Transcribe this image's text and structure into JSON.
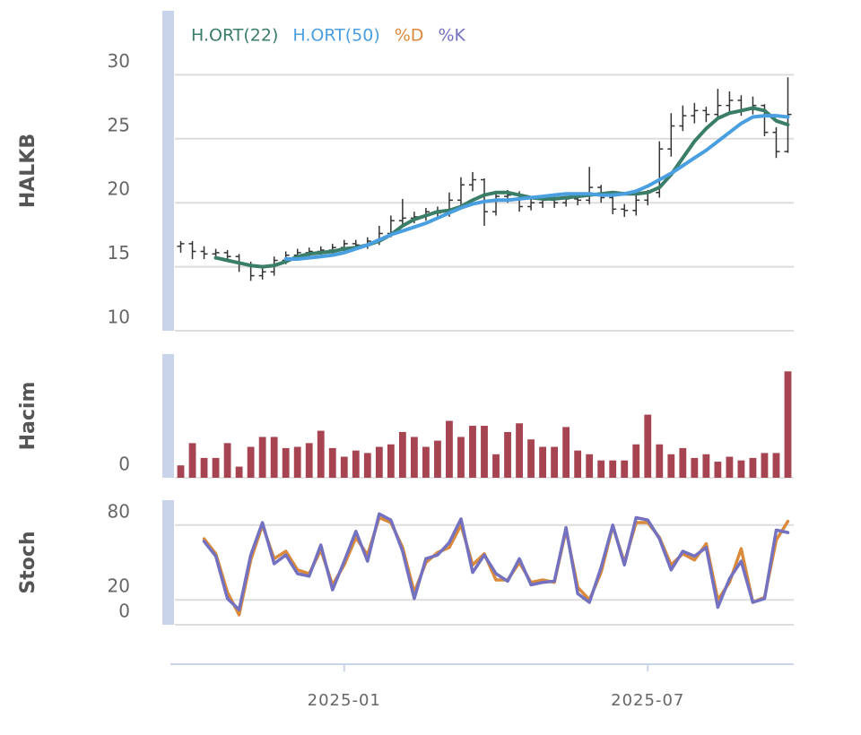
{
  "chart_data": [
    {
      "type": "ohlc",
      "axis_label": "HALKB",
      "ylim": [
        10,
        35
      ],
      "yticks": [
        10,
        15,
        20,
        25,
        30
      ],
      "grid": true,
      "color": "#333333",
      "open": [
        16.6,
        16.8,
        16.2,
        16.0,
        16.1,
        15.8,
        15.2,
        14.3,
        14.6,
        15.5,
        15.9,
        16.1,
        16.2,
        16.3,
        16.5,
        16.8,
        16.7,
        17.0,
        17.6,
        18.6,
        18.8,
        18.9,
        19.3,
        19.2,
        20.2,
        21.4,
        21.8,
        19.3,
        20.5,
        20.6,
        19.7,
        20.0,
        20.2,
        20.0,
        20.3,
        20.2,
        21.2,
        20.4,
        19.5,
        19.4,
        20.2,
        20.8,
        24.2,
        26.0,
        26.8,
        27.2,
        26.9,
        27.6,
        28.0,
        27.3,
        27.6,
        25.5,
        24.0
      ],
      "high": [
        17.0,
        17.0,
        16.6,
        16.4,
        16.3,
        16.0,
        15.4,
        15.0,
        15.8,
        16.2,
        16.4,
        16.5,
        16.6,
        16.8,
        17.1,
        17.1,
        17.3,
        18.2,
        19.0,
        20.3,
        19.3,
        19.6,
        19.7,
        20.8,
        22.0,
        22.4,
        21.9,
        20.9,
        21.0,
        20.9,
        20.3,
        20.5,
        20.5,
        20.5,
        20.6,
        22.8,
        21.4,
        20.6,
        19.9,
        20.6,
        21.0,
        24.8,
        27.0,
        27.6,
        27.8,
        27.5,
        28.9,
        28.7,
        28.4,
        28.3,
        27.7,
        25.9,
        29.8
      ],
      "low": [
        16.1,
        15.6,
        15.6,
        15.6,
        15.4,
        14.6,
        13.9,
        14.0,
        14.3,
        15.2,
        15.6,
        15.8,
        15.9,
        16.0,
        16.2,
        16.3,
        16.4,
        16.7,
        17.3,
        18.3,
        18.4,
        18.6,
        18.8,
        18.9,
        19.8,
        20.9,
        18.2,
        19.0,
        20.0,
        19.3,
        19.4,
        19.6,
        19.6,
        19.7,
        19.8,
        19.9,
        20.0,
        19.1,
        18.9,
        19.0,
        19.8,
        20.4,
        23.6,
        25.6,
        26.2,
        26.3,
        26.5,
        27.0,
        26.8,
        26.9,
        25.2,
        23.5,
        23.9
      ],
      "close": [
        16.8,
        16.2,
        16.0,
        16.1,
        15.8,
        15.2,
        14.3,
        14.6,
        15.5,
        15.9,
        16.1,
        16.2,
        16.3,
        16.5,
        16.8,
        16.7,
        17.0,
        17.6,
        18.6,
        18.8,
        18.9,
        19.3,
        19.2,
        20.2,
        21.4,
        21.8,
        19.3,
        20.5,
        20.6,
        19.7,
        20.0,
        20.2,
        20.0,
        20.3,
        20.2,
        21.2,
        20.4,
        19.5,
        19.4,
        20.2,
        20.8,
        24.2,
        26.0,
        26.8,
        27.2,
        26.9,
        27.6,
        28.0,
        27.3,
        27.6,
        25.5,
        24.0,
        26.9
      ],
      "series": [
        {
          "name": "H.ORT(22)",
          "color": "#3a7d68",
          "values": [
            null,
            null,
            null,
            15.7,
            15.5,
            15.3,
            15.1,
            15.0,
            15.1,
            15.4,
            15.8,
            16.0,
            16.1,
            16.2,
            16.4,
            16.5,
            16.7,
            17.0,
            17.5,
            18.2,
            18.7,
            19.0,
            19.3,
            19.4,
            19.7,
            20.2,
            20.6,
            20.8,
            20.8,
            20.6,
            20.4,
            20.3,
            20.3,
            20.4,
            20.5,
            20.6,
            20.7,
            20.8,
            20.7,
            20.7,
            20.8,
            21.2,
            22.2,
            23.5,
            24.8,
            25.8,
            26.6,
            27.0,
            27.2,
            27.4,
            27.2,
            26.4,
            26.1
          ]
        },
        {
          "name": "H.ORT(50)",
          "color": "#4a9fe0",
          "values": [
            null,
            null,
            null,
            null,
            null,
            null,
            null,
            null,
            null,
            15.6,
            15.6,
            15.7,
            15.8,
            15.9,
            16.1,
            16.4,
            16.7,
            17.1,
            17.5,
            17.8,
            18.1,
            18.4,
            18.8,
            19.2,
            19.6,
            19.9,
            20.1,
            20.2,
            20.2,
            20.3,
            20.4,
            20.5,
            20.6,
            20.7,
            20.7,
            20.7,
            20.6,
            20.6,
            20.7,
            20.9,
            21.3,
            21.8,
            22.3,
            22.9,
            23.5,
            24.1,
            24.8,
            25.5,
            26.2,
            26.7,
            26.8,
            26.8,
            26.7
          ]
        }
      ]
    },
    {
      "type": "bar",
      "axis_label": "Hacim",
      "ylim": [
        0,
        100
      ],
      "yticks": [
        0
      ],
      "color": "#a64452",
      "values": [
        10,
        28,
        16,
        16,
        28,
        9,
        25,
        33,
        33,
        24,
        25,
        28,
        38,
        24,
        17,
        22,
        20,
        25,
        27,
        37,
        33,
        25,
        30,
        46,
        33,
        42,
        42,
        19,
        37,
        44,
        31,
        25,
        25,
        41,
        22,
        19,
        14,
        14,
        14,
        27,
        51,
        27,
        19,
        24,
        16,
        19,
        13,
        17,
        14,
        16,
        20,
        20,
        86
      ]
    },
    {
      "type": "line",
      "axis_label": "Stoch",
      "ylim": [
        0,
        100
      ],
      "yticks": [
        0,
        20,
        80
      ],
      "grid": true,
      "categories": [
        null,
        null,
        null,
        null,
        null,
        null,
        null,
        null,
        null,
        null,
        null,
        null,
        null,
        null,
        "2025-01",
        null,
        null,
        null,
        null,
        null,
        null,
        null,
        null,
        null,
        null,
        null,
        null,
        null,
        null,
        null,
        null,
        null,
        null,
        null,
        null,
        null,
        null,
        null,
        null,
        null,
        "2025-07",
        null,
        null,
        null,
        null,
        null,
        null,
        null,
        null,
        null,
        null,
        null,
        null
      ],
      "series": [
        {
          "name": "%D",
          "color": "#d98a3a",
          "values": [
            null,
            null,
            69,
            57,
            26,
            8,
            52,
            80,
            53,
            59,
            44,
            41,
            60,
            32,
            48,
            70,
            56,
            86,
            82,
            62,
            26,
            50,
            58,
            62,
            80,
            48,
            57,
            36,
            36,
            50,
            34,
            36,
            34,
            76,
            30,
            20,
            42,
            79,
            50,
            82,
            82,
            70,
            48,
            57,
            52,
            65,
            20,
            34,
            61,
            18,
            22,
            68,
            83
          ]
        },
        {
          "name": "%K",
          "color": "#7371c0",
          "values": [
            null,
            null,
            67,
            55,
            21,
            12,
            56,
            82,
            49,
            56,
            41,
            39,
            64,
            28,
            51,
            75,
            51,
            89,
            84,
            59,
            21,
            53,
            56,
            66,
            85,
            42,
            56,
            41,
            35,
            53,
            32,
            34,
            35,
            78,
            25,
            18,
            46,
            80,
            48,
            86,
            84,
            69,
            44,
            59,
            55,
            62,
            14,
            37,
            51,
            18,
            21,
            76,
            74
          ]
        }
      ]
    }
  ]
}
